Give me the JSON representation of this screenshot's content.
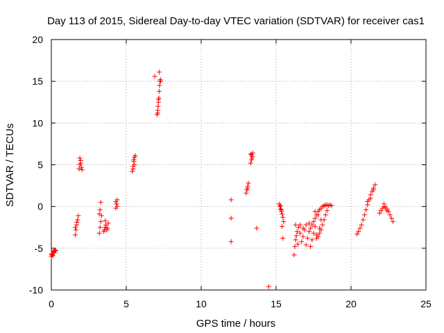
{
  "chart_data": {
    "type": "scatter",
    "title": "Day 113 of 2015, Sidereal Day-to-day VTEC variation (SDTVAR) for receiver cas1",
    "xlabel": "GPS time / hours",
    "ylabel": "SDTVAR / TECUs",
    "xlim": [
      0,
      25
    ],
    "ylim": [
      -10,
      20
    ],
    "xticks": [
      0,
      5,
      10,
      15,
      20,
      25
    ],
    "yticks": [
      -10,
      -5,
      0,
      5,
      10,
      15,
      20
    ],
    "grid": true,
    "marker": "plus",
    "color": "#ff0000",
    "series": [
      {
        "name": "SDTVAR",
        "points": [
          [
            0.0,
            -6.0
          ],
          [
            0.05,
            -5.8
          ],
          [
            0.1,
            -5.6
          ],
          [
            0.15,
            -5.4
          ],
          [
            0.2,
            -5.3
          ],
          [
            0.25,
            -5.2
          ],
          [
            0.0,
            -5.7
          ],
          [
            0.1,
            -5.9
          ],
          [
            0.2,
            -5.5
          ],
          [
            0.3,
            -5.3
          ],
          [
            1.6,
            -3.4
          ],
          [
            1.65,
            -2.8
          ],
          [
            1.7,
            -2.2
          ],
          [
            1.75,
            -1.6
          ],
          [
            1.8,
            -1.1
          ],
          [
            1.6,
            -2.5
          ],
          [
            1.7,
            -1.9
          ],
          [
            1.85,
            4.5
          ],
          [
            1.9,
            5.0
          ],
          [
            1.95,
            5.5
          ],
          [
            2.0,
            4.7
          ],
          [
            1.9,
            5.8
          ],
          [
            2.05,
            4.4
          ],
          [
            1.95,
            5.2
          ],
          [
            3.2,
            -3.2
          ],
          [
            3.25,
            -2.5
          ],
          [
            3.3,
            -1.8
          ],
          [
            3.35,
            -1.1
          ],
          [
            3.3,
            0.5
          ],
          [
            3.25,
            -0.4
          ],
          [
            3.2,
            -0.9
          ],
          [
            3.5,
            -3.0
          ],
          [
            3.55,
            -2.8
          ],
          [
            3.6,
            -2.5
          ],
          [
            3.65,
            -2.2
          ],
          [
            3.7,
            -2.8
          ],
          [
            3.75,
            -2.6
          ],
          [
            3.8,
            -2.0
          ],
          [
            3.6,
            -1.7
          ],
          [
            4.3,
            -0.2
          ],
          [
            4.35,
            0.3
          ],
          [
            4.4,
            0.8
          ],
          [
            4.3,
            0.6
          ],
          [
            4.4,
            0.0
          ],
          [
            5.4,
            4.2
          ],
          [
            5.45,
            4.8
          ],
          [
            5.5,
            5.4
          ],
          [
            5.55,
            5.9
          ],
          [
            5.6,
            6.1
          ],
          [
            5.5,
            5.6
          ],
          [
            5.45,
            4.5
          ],
          [
            5.55,
            5.0
          ],
          [
            6.9,
            15.6
          ],
          [
            7.05,
            11.0
          ],
          [
            7.1,
            11.5
          ],
          [
            7.12,
            12.0
          ],
          [
            7.15,
            12.5
          ],
          [
            7.18,
            13.0
          ],
          [
            7.2,
            13.8
          ],
          [
            7.22,
            14.5
          ],
          [
            7.25,
            15.0
          ],
          [
            7.28,
            15.2
          ],
          [
            7.2,
            16.1
          ],
          [
            7.1,
            11.2
          ],
          [
            7.15,
            12.8
          ],
          [
            7.3,
            15.0
          ],
          [
            12.0,
            0.8
          ],
          [
            12.0,
            -1.4
          ],
          [
            12.0,
            -4.2
          ],
          [
            13.0,
            1.6
          ],
          [
            13.05,
            2.0
          ],
          [
            13.1,
            2.4
          ],
          [
            13.15,
            2.8
          ],
          [
            13.1,
            2.2
          ],
          [
            13.3,
            5.2
          ],
          [
            13.35,
            5.6
          ],
          [
            13.4,
            6.0
          ],
          [
            13.45,
            6.4
          ],
          [
            13.3,
            6.3
          ],
          [
            13.4,
            5.8
          ],
          [
            13.35,
            6.2
          ],
          [
            13.7,
            -2.6
          ],
          [
            14.5,
            -9.6
          ],
          [
            15.2,
            0.3
          ],
          [
            15.25,
            0.0
          ],
          [
            15.3,
            -0.3
          ],
          [
            15.35,
            -0.6
          ],
          [
            15.4,
            -0.9
          ],
          [
            15.45,
            -1.3
          ],
          [
            15.5,
            -1.8
          ],
          [
            15.4,
            -2.4
          ],
          [
            15.45,
            -3.8
          ],
          [
            15.3,
            0.1
          ],
          [
            15.35,
            -0.4
          ],
          [
            16.2,
            -5.8
          ],
          [
            16.25,
            -4.8
          ],
          [
            16.3,
            -4.0
          ],
          [
            16.35,
            -3.5
          ],
          [
            16.4,
            -3.0
          ],
          [
            16.5,
            -2.5
          ],
          [
            16.3,
            -2.2
          ],
          [
            16.45,
            -4.5
          ],
          [
            16.6,
            -3.2
          ],
          [
            16.7,
            -4.2
          ],
          [
            16.8,
            -3.6
          ],
          [
            16.9,
            -2.8
          ],
          [
            17.0,
            -4.6
          ],
          [
            17.1,
            -3.8
          ],
          [
            17.2,
            -3.0
          ],
          [
            17.3,
            -4.8
          ],
          [
            17.4,
            -4.0
          ],
          [
            17.5,
            -3.2
          ],
          [
            17.6,
            -2.4
          ],
          [
            17.7,
            -3.4
          ],
          [
            16.6,
            -2.2
          ],
          [
            16.8,
            -2.6
          ],
          [
            17.0,
            -2.2
          ],
          [
            17.2,
            -2.0
          ],
          [
            17.3,
            -2.6
          ],
          [
            17.4,
            -2.2
          ],
          [
            17.5,
            -1.8
          ],
          [
            17.6,
            -1.4
          ],
          [
            17.7,
            -1.0
          ],
          [
            17.8,
            -0.6
          ],
          [
            17.9,
            -0.4
          ],
          [
            18.0,
            -0.2
          ],
          [
            18.1,
            0.0
          ],
          [
            18.2,
            0.1
          ],
          [
            18.3,
            0.2
          ],
          [
            18.4,
            0.2
          ],
          [
            18.5,
            0.1
          ],
          [
            18.6,
            0.2
          ],
          [
            18.7,
            0.1
          ],
          [
            17.8,
            -3.6
          ],
          [
            17.9,
            -3.2
          ],
          [
            18.0,
            -2.8
          ],
          [
            18.1,
            -2.2
          ],
          [
            18.2,
            -1.6
          ],
          [
            18.3,
            -1.0
          ],
          [
            18.4,
            -0.5
          ],
          [
            17.6,
            -0.6
          ],
          [
            17.8,
            -1.0
          ],
          [
            18.0,
            -1.6
          ],
          [
            17.7,
            -3.8
          ],
          [
            17.9,
            -2.6
          ],
          [
            20.4,
            -3.3
          ],
          [
            20.5,
            -3.0
          ],
          [
            20.6,
            -2.6
          ],
          [
            20.7,
            -2.2
          ],
          [
            20.8,
            -1.6
          ],
          [
            20.9,
            -1.0
          ],
          [
            21.0,
            -0.4
          ],
          [
            21.1,
            0.2
          ],
          [
            21.2,
            0.8
          ],
          [
            21.3,
            1.4
          ],
          [
            21.4,
            1.8
          ],
          [
            21.5,
            2.2
          ],
          [
            21.6,
            2.6
          ],
          [
            21.1,
            0.6
          ],
          [
            21.3,
            1.0
          ],
          [
            21.5,
            2.0
          ],
          [
            21.9,
            -0.8
          ],
          [
            22.0,
            -0.5
          ],
          [
            22.1,
            -0.2
          ],
          [
            22.2,
            0.0
          ],
          [
            22.3,
            -0.1
          ],
          [
            22.4,
            -0.3
          ],
          [
            22.5,
            -0.6
          ],
          [
            22.6,
            -1.0
          ],
          [
            22.7,
            -1.4
          ],
          [
            22.8,
            -1.8
          ],
          [
            22.2,
            0.3
          ],
          [
            22.4,
            -0.5
          ]
        ]
      }
    ]
  }
}
